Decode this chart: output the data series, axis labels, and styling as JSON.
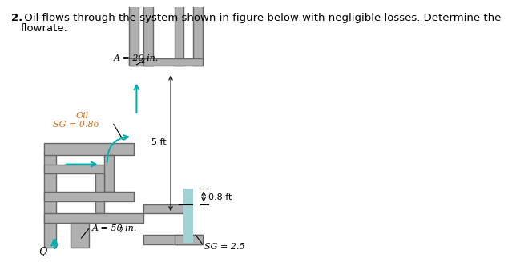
{
  "title_line1": "2.  Oil flows through the system shown in figure below with negligible losses. Determine the",
  "title_line2": "     flowrate.",
  "label_A1": "A = 20 in.",
  "label_A1_sup": "2",
  "label_oil": "Oil",
  "label_sg_oil": "SG = 0.86",
  "label_5ft": "5 ft",
  "label_08ft": "0.8 ft",
  "label_A2": "A = 50 in.",
  "label_A2_sup": "2",
  "label_sg2": "SG = 2.5",
  "label_Q": "Q",
  "pipe_color": "#b0b0b0",
  "pipe_outline": "#666666",
  "fluid_heavy": "#a0d4d4",
  "arrow_color": "#00b0b0",
  "text_color": "#000000",
  "label_color_oil": "#c87020",
  "bg_color": "#ffffff",
  "note_bold": "2.",
  "note_text": " Oil flows through the system shown in figure below with negligible losses. Determine the"
}
